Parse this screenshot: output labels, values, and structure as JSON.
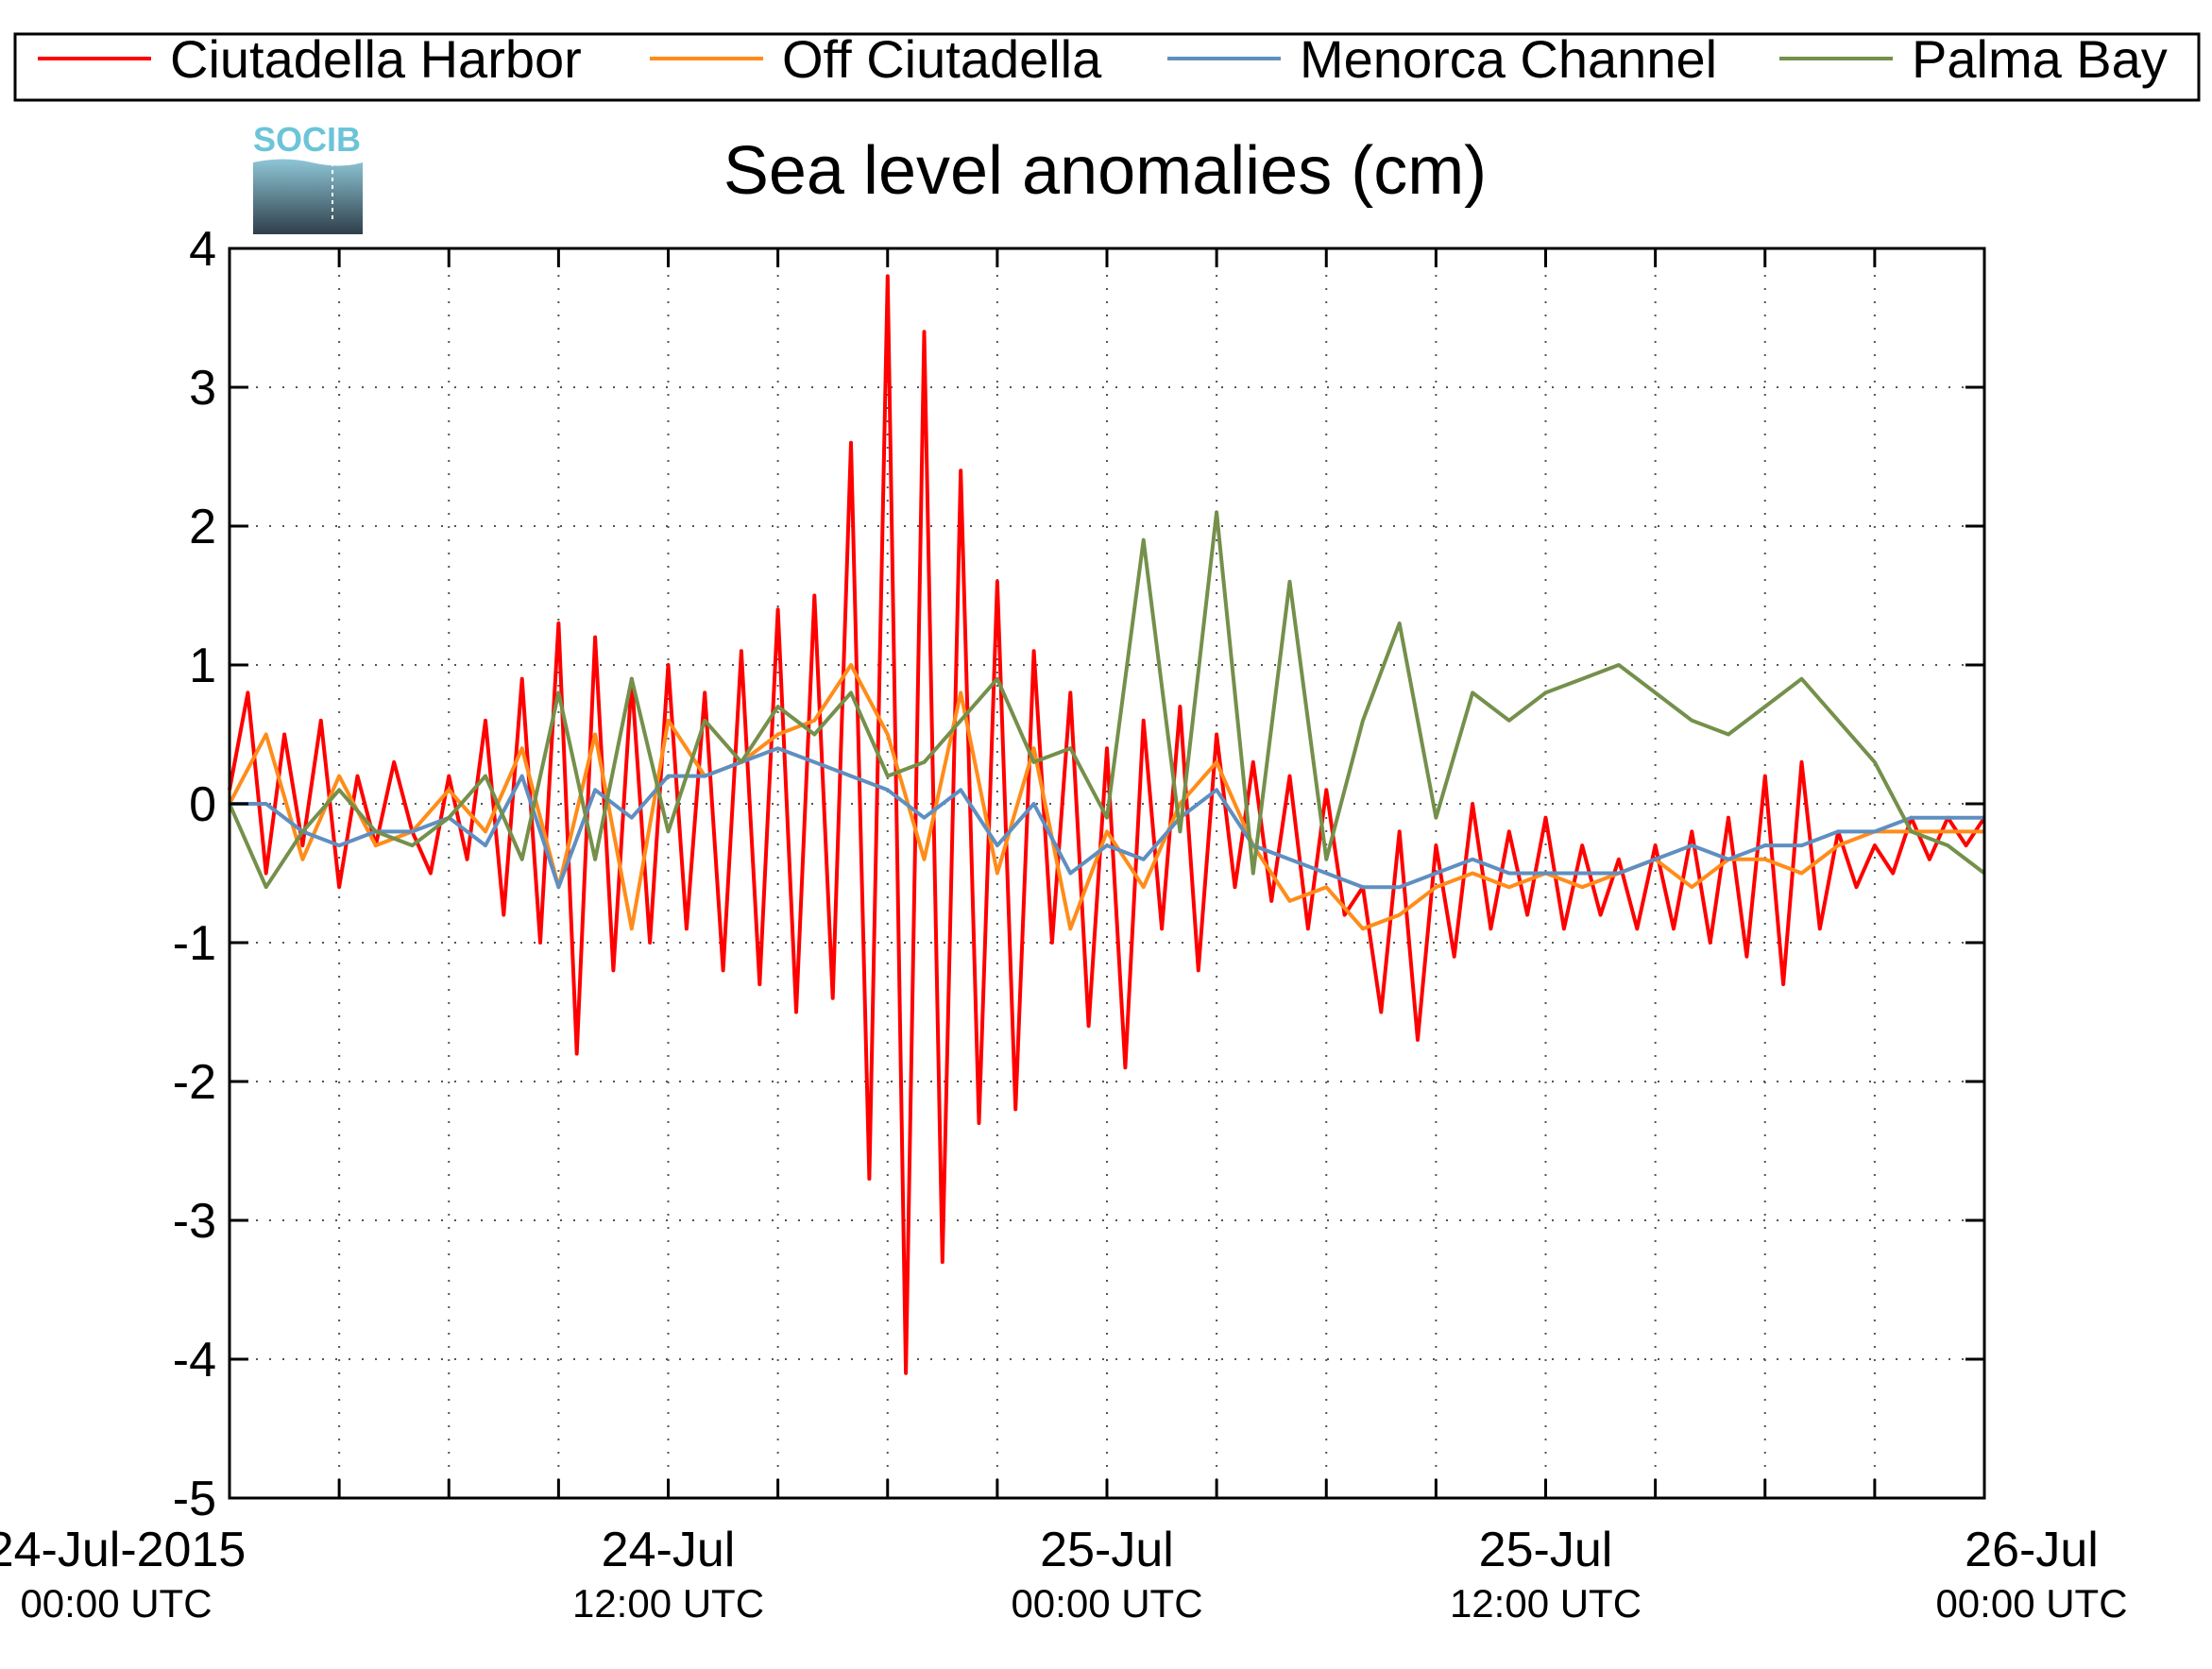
{
  "chart_data": {
    "type": "line",
    "title": "Sea level anomalies (cm)",
    "logo_text": "SOCIB",
    "xlabel": "",
    "ylabel": "",
    "ylim": [
      -5,
      4
    ],
    "xlim_hours": [
      0,
      48
    ],
    "yticks": [
      "-5",
      "-4",
      "-3",
      "-2",
      "-1",
      "0",
      "1",
      "2",
      "3",
      "4"
    ],
    "yticks_values": [
      -5,
      -4,
      -3,
      -2,
      -1,
      0,
      1,
      2,
      3,
      4
    ],
    "xticks": [
      {
        "hour": 0,
        "line1": "24-Jul-2015",
        "line2": "00:00 UTC"
      },
      {
        "hour": 12,
        "line1": "24-Jul",
        "line2": "12:00 UTC"
      },
      {
        "hour": 24,
        "line1": "25-Jul",
        "line2": "00:00 UTC"
      },
      {
        "hour": 36,
        "line1": "25-Jul",
        "line2": "12:00 UTC"
      },
      {
        "hour": 48,
        "line1": "26-Jul",
        "line2": "00:00 UTC"
      }
    ],
    "minor_x_step_hours": 3,
    "grid": true,
    "legend_position": "top",
    "series": [
      {
        "name": "Ciutadella Harbor",
        "color": "#ff0000",
        "x": [
          0,
          0.5,
          1,
          1.5,
          2,
          2.5,
          3,
          3.5,
          4,
          4.5,
          5,
          5.5,
          6,
          6.5,
          7,
          7.5,
          8,
          8.5,
          9,
          9.5,
          10,
          10.5,
          11,
          11.5,
          12,
          12.5,
          13,
          13.5,
          14,
          14.5,
          15,
          15.5,
          16,
          16.5,
          17,
          17.5,
          18,
          18.5,
          19,
          19.5,
          20,
          20.5,
          21,
          21.5,
          22,
          22.5,
          23,
          23.5,
          24,
          24.5,
          25,
          25.5,
          26,
          26.5,
          27,
          27.5,
          28,
          28.5,
          29,
          29.5,
          30,
          30.5,
          31,
          31.5,
          32,
          32.5,
          33,
          33.5,
          34,
          34.5,
          35,
          35.5,
          36,
          36.5,
          37,
          37.5,
          38,
          38.5,
          39,
          39.5,
          40,
          40.5,
          41,
          41.5,
          42,
          42.5,
          43,
          43.5,
          44,
          44.5,
          45,
          45.5,
          46,
          46.5,
          47,
          47.5,
          48
        ],
        "y": [
          0.1,
          0.8,
          -0.5,
          0.5,
          -0.3,
          0.6,
          -0.6,
          0.2,
          -0.3,
          0.3,
          -0.2,
          -0.5,
          0.2,
          -0.4,
          0.6,
          -0.8,
          0.9,
          -1.0,
          1.3,
          -1.8,
          1.2,
          -1.2,
          0.9,
          -1.0,
          1.0,
          -0.9,
          0.8,
          -1.2,
          1.1,
          -1.3,
          1.4,
          -1.5,
          1.5,
          -1.4,
          2.6,
          -2.7,
          3.8,
          -4.1,
          3.4,
          -3.3,
          2.4,
          -2.3,
          1.6,
          -2.2,
          1.1,
          -1.0,
          0.8,
          -1.6,
          0.4,
          -1.9,
          0.6,
          -0.9,
          0.7,
          -1.2,
          0.5,
          -0.6,
          0.3,
          -0.7,
          0.2,
          -0.9,
          0.1,
          -0.8,
          -0.6,
          -1.5,
          -0.2,
          -1.7,
          -0.3,
          -1.1,
          0.0,
          -0.9,
          -0.2,
          -0.8,
          -0.1,
          -0.9,
          -0.3,
          -0.8,
          -0.4,
          -0.9,
          -0.3,
          -0.9,
          -0.2,
          -1.0,
          -0.1,
          -1.1,
          0.2,
          -1.3,
          0.3,
          -0.9,
          -0.2,
          -0.6,
          -0.3,
          -0.5,
          -0.1,
          -0.4,
          -0.1,
          -0.3,
          -0.1
        ]
      },
      {
        "name": "Off Ciutadella",
        "color": "#ff8c1a",
        "x": [
          0,
          1,
          2,
          3,
          4,
          5,
          6,
          7,
          8,
          9,
          10,
          11,
          12,
          13,
          14,
          15,
          16,
          17,
          18,
          19,
          20,
          21,
          22,
          23,
          24,
          25,
          26,
          27,
          28,
          29,
          30,
          31,
          32,
          33,
          34,
          35,
          36,
          37,
          38,
          39,
          40,
          41,
          42,
          43,
          44,
          45,
          46,
          47,
          48
        ],
        "y": [
          0.0,
          0.5,
          -0.4,
          0.2,
          -0.3,
          -0.2,
          0.1,
          -0.2,
          0.4,
          -0.6,
          0.5,
          -0.9,
          0.6,
          0.2,
          0.3,
          0.5,
          0.6,
          1.0,
          0.5,
          -0.4,
          0.8,
          -0.5,
          0.4,
          -0.9,
          -0.2,
          -0.6,
          0.0,
          0.3,
          -0.3,
          -0.7,
          -0.6,
          -0.9,
          -0.8,
          -0.6,
          -0.5,
          -0.6,
          -0.5,
          -0.6,
          -0.5,
          -0.4,
          -0.6,
          -0.4,
          -0.4,
          -0.5,
          -0.3,
          -0.2,
          -0.2,
          -0.2,
          -0.2
        ]
      },
      {
        "name": "Menorca Channel",
        "color": "#5f8fc0",
        "x": [
          0,
          1,
          2,
          3,
          4,
          5,
          6,
          7,
          8,
          9,
          10,
          11,
          12,
          13,
          14,
          15,
          16,
          17,
          18,
          19,
          20,
          21,
          22,
          23,
          24,
          25,
          26,
          27,
          28,
          29,
          30,
          31,
          32,
          33,
          34,
          35,
          36,
          37,
          38,
          39,
          40,
          41,
          42,
          43,
          44,
          45,
          46,
          47,
          48
        ],
        "y": [
          0.0,
          0.0,
          -0.2,
          -0.3,
          -0.2,
          -0.2,
          -0.1,
          -0.3,
          0.2,
          -0.6,
          0.1,
          -0.1,
          0.2,
          0.2,
          0.3,
          0.4,
          0.3,
          0.2,
          0.1,
          -0.1,
          0.1,
          -0.3,
          0.0,
          -0.5,
          -0.3,
          -0.4,
          -0.1,
          0.1,
          -0.3,
          -0.4,
          -0.5,
          -0.6,
          -0.6,
          -0.5,
          -0.4,
          -0.5,
          -0.5,
          -0.5,
          -0.5,
          -0.4,
          -0.3,
          -0.4,
          -0.3,
          -0.3,
          -0.2,
          -0.2,
          -0.1,
          -0.1,
          -0.1
        ]
      },
      {
        "name": "Palma Bay",
        "color": "#74904b",
        "x": [
          0,
          1,
          2,
          3,
          4,
          5,
          6,
          7,
          8,
          9,
          10,
          11,
          12,
          13,
          14,
          15,
          16,
          17,
          18,
          19,
          20,
          21,
          22,
          23,
          24,
          25,
          26,
          27,
          28,
          29,
          30,
          31,
          32,
          33,
          34,
          35,
          36,
          37,
          38,
          39,
          40,
          41,
          42,
          43,
          44,
          45,
          46,
          47,
          48
        ],
        "y": [
          0.0,
          -0.6,
          -0.2,
          0.1,
          -0.2,
          -0.3,
          -0.1,
          0.2,
          -0.4,
          0.8,
          -0.4,
          0.9,
          -0.2,
          0.6,
          0.3,
          0.7,
          0.5,
          0.8,
          0.2,
          0.3,
          0.6,
          0.9,
          0.3,
          0.4,
          -0.1,
          1.9,
          -0.2,
          2.1,
          -0.5,
          1.6,
          -0.4,
          0.6,
          1.3,
          -0.1,
          0.8,
          0.6,
          0.8,
          0.9,
          1.0,
          0.8,
          0.6,
          0.5,
          0.7,
          0.9,
          0.6,
          0.3,
          -0.2,
          -0.3,
          -0.5
        ]
      }
    ]
  }
}
